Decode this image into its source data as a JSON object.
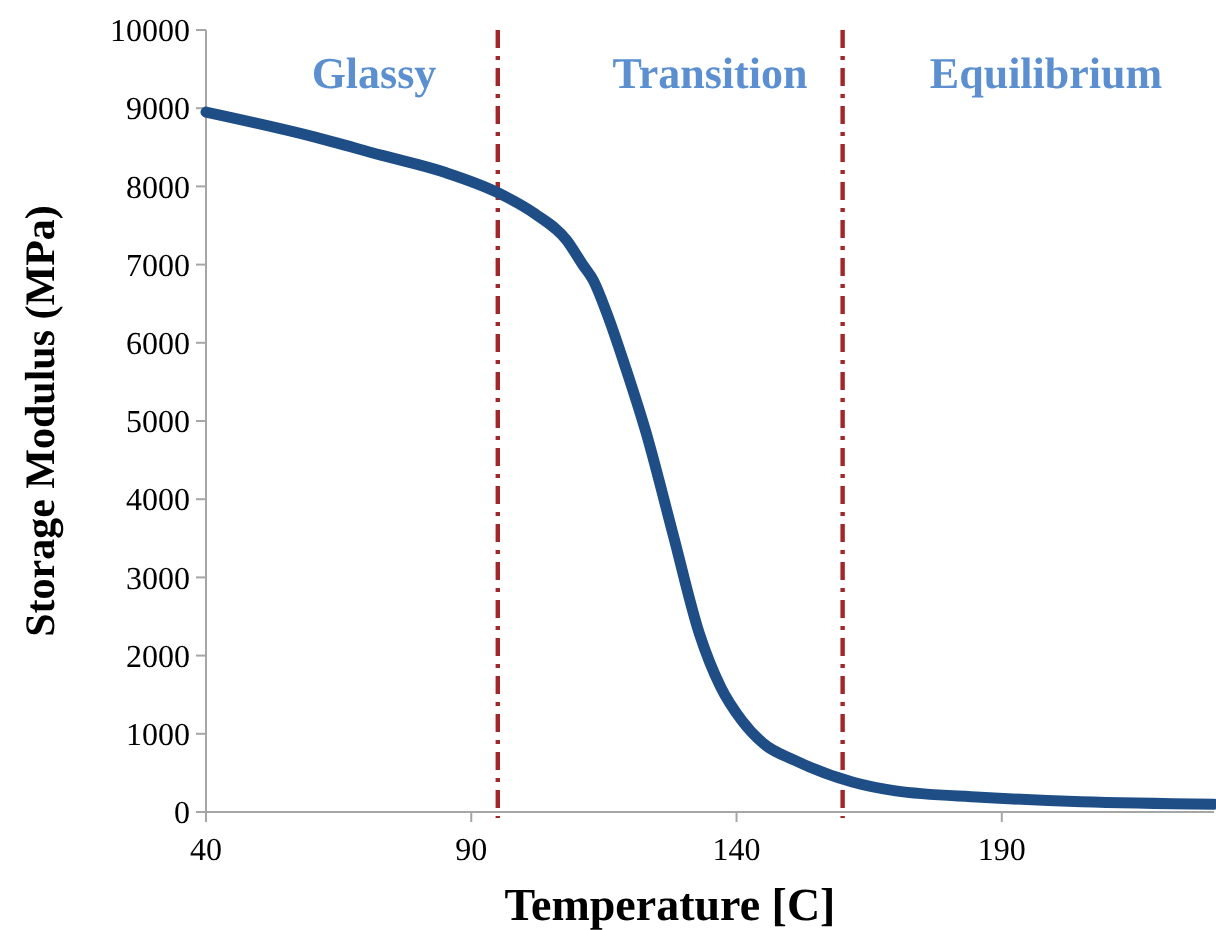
{
  "chart_data": {
    "type": "line",
    "xlabel": "Temperature [C]",
    "ylabel": "Storage Modulus (MPa)",
    "x": [
      40,
      60,
      73,
      85,
      95,
      102,
      108,
      111,
      113,
      115.6,
      119,
      123,
      128,
      133,
      137,
      141,
      145,
      151,
      162,
      170,
      186,
      205,
      230
    ],
    "series": [
      {
        "color": "#1f4e87",
        "values": [
          8950,
          8640,
          8400,
          8180,
          7920,
          7650,
          7310,
          7000,
          6800,
          6370,
          5700,
          4840,
          3560,
          2280,
          1600,
          1170,
          880,
          660,
          380,
          270,
          190,
          130,
          100
        ]
      }
    ],
    "xlim": [
      40,
      230
    ],
    "xticks": [
      40,
      90,
      140,
      190
    ],
    "ylim": [
      0,
      10000
    ],
    "yticks": [
      0,
      1000,
      2000,
      3000,
      4000,
      5000,
      6000,
      7000,
      8000,
      9000,
      10000
    ],
    "ref_lines": [
      {
        "axis": "x",
        "value": 95,
        "color": "#a0282a",
        "line_style": "dashed"
      },
      {
        "axis": "x",
        "value": 160,
        "color": "#a0282a",
        "line_style": "dashed"
      }
    ],
    "annotations": [
      "Glassy",
      "Transition",
      "Equilibrium"
    ],
    "grid": false,
    "marker": "none",
    "line_style": "solid"
  }
}
